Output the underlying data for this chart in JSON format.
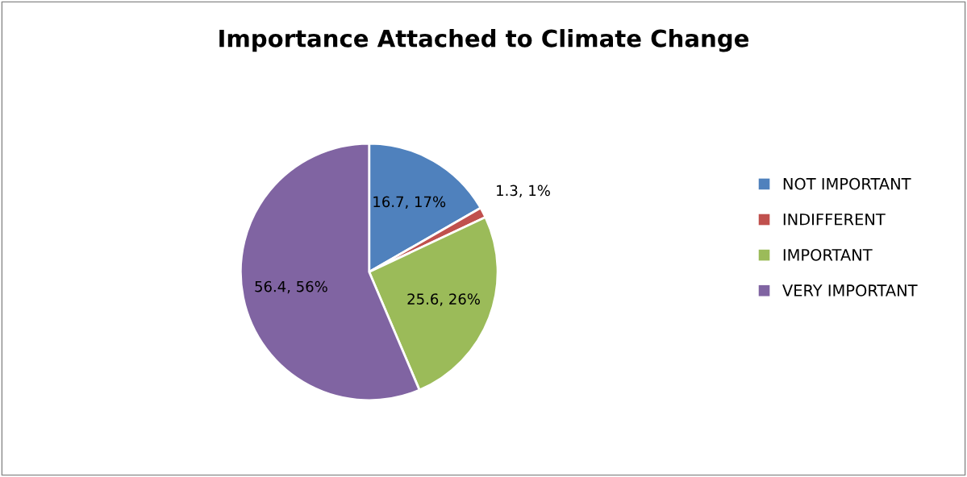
{
  "chart_data": {
    "type": "pie",
    "title": "Importance Attached to Climate Change",
    "categories": [
      "NOT IMPORTANT",
      "INDIFFERENT",
      "IMPORTANT",
      "VERY IMPORTANT"
    ],
    "values": [
      16.7,
      1.3,
      25.6,
      56.4
    ],
    "colors": [
      "#4f81bd",
      "#c0504d",
      "#9bbb59",
      "#8064a2"
    ],
    "value_labels": [
      "16.7, 17%",
      "1.3, 1%",
      "25.6, 26%",
      "56.4, 56%"
    ],
    "legend": "right"
  }
}
